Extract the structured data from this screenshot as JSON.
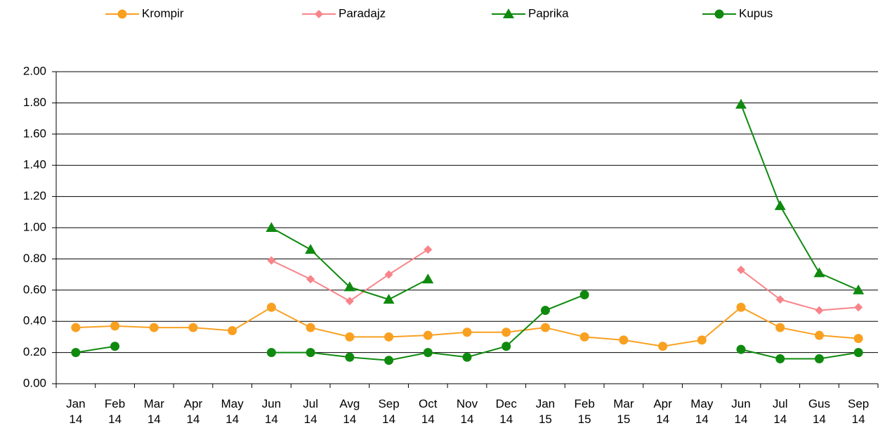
{
  "chart_data": {
    "type": "line",
    "categories": [
      "Jan 14",
      "Feb 14",
      "Mar 14",
      "Apr 14",
      "May 14",
      "Jun 14",
      "Jul 14",
      "Avg 14",
      "Sep 14",
      "Oct 14",
      "Nov 14",
      "Dec 14",
      "Jan 15",
      "Feb 15",
      "Mar 15",
      "Apr 14",
      "May 14",
      "Jun 14",
      "Jul 14",
      "Gus 14",
      "Sep 14"
    ],
    "series": [
      {
        "name": "Krompir",
        "color": "#f9a021",
        "marker": "circle",
        "values": [
          0.36,
          0.37,
          0.36,
          0.36,
          0.34,
          0.49,
          0.36,
          0.3,
          0.3,
          0.31,
          0.33,
          0.33,
          0.36,
          0.3,
          0.28,
          0.24,
          0.28,
          0.49,
          0.36,
          0.31,
          0.29
        ]
      },
      {
        "name": "Paradajz",
        "color": "#f8848a",
        "marker": "diamond",
        "values": [
          null,
          null,
          null,
          null,
          null,
          0.79,
          0.67,
          0.53,
          0.7,
          0.86,
          null,
          null,
          null,
          null,
          null,
          null,
          null,
          0.73,
          0.54,
          0.47,
          0.49
        ]
      },
      {
        "name": "Paprika",
        "color": "#0f8a0f",
        "marker": "triangle",
        "values": [
          null,
          null,
          null,
          null,
          null,
          1.0,
          0.86,
          0.62,
          0.54,
          0.67,
          null,
          null,
          null,
          null,
          null,
          null,
          null,
          1.79,
          1.14,
          0.71,
          0.6
        ]
      },
      {
        "name": "Kupus",
        "color": "#0f8a0f",
        "marker": "circle",
        "values": [
          0.2,
          0.24,
          null,
          null,
          null,
          0.2,
          0.2,
          0.17,
          0.15,
          0.2,
          0.17,
          0.24,
          0.47,
          0.57,
          null,
          null,
          null,
          0.22,
          0.16,
          0.16,
          0.2
        ]
      }
    ],
    "ylim": [
      0,
      2
    ],
    "yticks": [
      {
        "value": 0,
        "label": "0.00"
      },
      {
        "value": 0.2,
        "label": "0.20"
      },
      {
        "value": 0.4,
        "label": "0.40"
      },
      {
        "value": 0.6,
        "label": "0.60"
      },
      {
        "value": 0.8,
        "label": "0.80"
      },
      {
        "value": 1,
        "label": "1.00"
      },
      {
        "value": 1.2,
        "label": "1.20"
      },
      {
        "value": 1.4,
        "label": "1.40"
      },
      {
        "value": 1.6,
        "label": "1.60"
      },
      {
        "value": 1.8,
        "label": "1.80"
      },
      {
        "value": 2,
        "label": "2.00"
      }
    ],
    "grid": true,
    "legend": "top"
  }
}
